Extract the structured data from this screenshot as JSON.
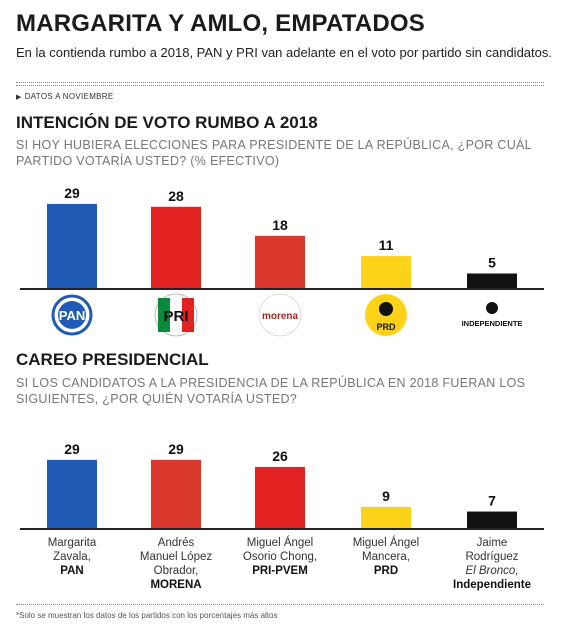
{
  "header": {
    "title": "MARGARITA Y AMLO, EMPATADOS",
    "subtitle": "En la contienda rumbo a 2018, PAN y PRI van adelante en el voto por partido sin candidatos.",
    "source_note": "DATOS A NOVIEMBRE"
  },
  "section1": {
    "title": "INTENCIÓN DE VOTO RUMBO A 2018",
    "question": "SI HOY HUBIERA ELECCIONES PARA PRESIDENTE DE LA REPÚBLICA, ¿POR CUÁL PARTIDO VOTARÍA USTED? (% EFECTIVO)"
  },
  "section2": {
    "title": "CAREO PRESIDENCIAL",
    "question": "SI LOS CANDIDATOS A LA PRESIDENCIA DE LA REPÚBLICA EN 2018 FUERAN  LOS SIGUIENTES, ¿POR QUIÉN VOTARÍA USTED?"
  },
  "logos": {
    "pan": "PAN",
    "pri": "PRI",
    "morena": "morena",
    "prd": "PRD",
    "independiente": "INDEPENDIENTE"
  },
  "candidates": [
    {
      "line1": "Margarita",
      "line2": "Zavala,",
      "party": "PAN"
    },
    {
      "line1": "Andrés",
      "line2": "Manuel López",
      "line3": "Obrador,",
      "party": "MORENA"
    },
    {
      "line1": "Miguel Ángel",
      "line2": "Osorio Chong,",
      "party": "PRI-PVEM"
    },
    {
      "line1": "Miguel Ángel",
      "line2": "Mancera,",
      "party": "PRD"
    },
    {
      "line1": "Jaime",
      "line2": "Rodríguez",
      "line3": "El Bronco,",
      "party": "Independiente"
    }
  ],
  "footnote": "*Solo se muestran los datos de los partidos con los porcentajes más altos",
  "chart_data": [
    {
      "type": "bar",
      "categories": [
        "PAN",
        "PRI",
        "morena",
        "PRD",
        "INDEPENDIENTE"
      ],
      "values": [
        29,
        28,
        18,
        11,
        5
      ],
      "colors": [
        "#1f5bb5",
        "#e32222",
        "#d9372b",
        "#ffd21a",
        "#111111"
      ],
      "title": "INTENCIÓN DE VOTO RUMBO A 2018",
      "grid": false
    },
    {
      "type": "bar",
      "categories": [
        "Margarita Zavala, PAN",
        "Andrés Manuel López Obrador, MORENA",
        "Miguel Ángel Osorio Chong, PRI-PVEM",
        "Miguel Ángel Mancera, PRD",
        "Jaime Rodríguez El Bronco, Independiente"
      ],
      "values": [
        29,
        29,
        26,
        9,
        7
      ],
      "colors": [
        "#1f5bb5",
        "#d9372b",
        "#e32222",
        "#ffd21a",
        "#111111"
      ],
      "title": "CAREO PRESIDENCIAL",
      "grid": false
    }
  ]
}
